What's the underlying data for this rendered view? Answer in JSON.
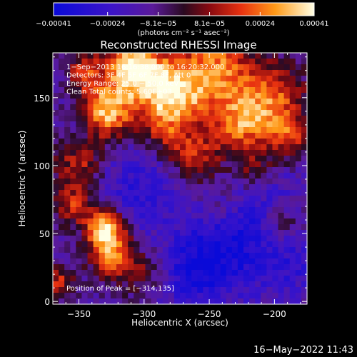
{
  "chart_data": {
    "type": "heatmap",
    "title": "Reconstructed RHESSI Image",
    "xlabel": "Heliocentric X (arcsec)",
    "ylabel": "Heliocentric Y (arcsec)",
    "xlim": [
      -370,
      -175
    ],
    "ylim": [
      -2,
      183
    ],
    "xticks": [
      -350,
      -300,
      -250,
      -200
    ],
    "xtick_labels": [
      "−350",
      "−300",
      "−250",
      "−200"
    ],
    "yticks": [
      0,
      50,
      100,
      150
    ],
    "ytick_labels": [
      "0",
      "50",
      "100",
      "150"
    ],
    "colorbar": {
      "range": [
        -0.00041,
        0.00041
      ],
      "ticks": [
        -0.00041,
        -0.00024,
        -8.1e-05,
        8.1e-05,
        0.00024,
        0.00041
      ],
      "tick_labels": [
        "−0.00041",
        "−0.00024",
        "−8.1e−05",
        "8.1e−05",
        "0.00024",
        "0.00041"
      ],
      "unit_label": "(photons cm⁻² s⁻¹ asec⁻²)"
    },
    "annotations": [
      "1−Sep−2013 16:16:38.000 to 16:20:32.000",
      "Detectors: 3F 4F 5F 6F 7F 8F, Att 0",
      "Energy Range: 25.0 − 50.0 keV",
      "Clean   Total counts: 5.60E+03"
    ],
    "peak_label": "Position of Peak = [−314,135]",
    "peak": {
      "x": -314,
      "y": 135
    },
    "grid": false
  },
  "timestamp": "16−May−2022 11:43"
}
